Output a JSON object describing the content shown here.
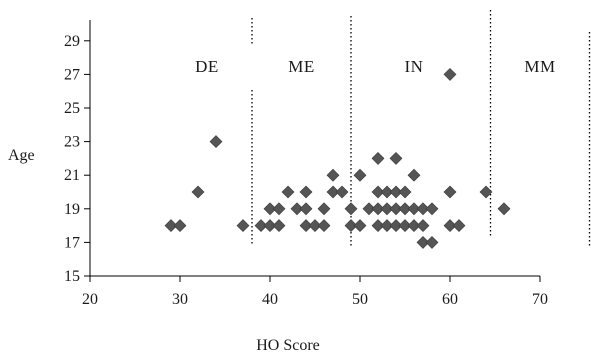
{
  "chart_data": {
    "type": "scatter",
    "title": "",
    "xlabel": "HO Score",
    "ylabel": "Age",
    "xlim": [
      20,
      70
    ],
    "ylim": [
      15,
      30
    ],
    "x_ticks": [
      20,
      30,
      40,
      50,
      60,
      70
    ],
    "y_ticks": [
      15,
      17,
      19,
      21,
      23,
      25,
      27,
      29
    ],
    "grid": false,
    "legend": "none",
    "marker": "diamond",
    "marker_color": "#555555",
    "regions": [
      {
        "label": "DE",
        "x_center": 33
      },
      {
        "label": "ME",
        "x_center": 43.5
      },
      {
        "label": "IN",
        "x_center": 56
      },
      {
        "label": "MM",
        "x_center": 70
      }
    ],
    "dividers": [
      38,
      49,
      64.5,
      75.5
    ],
    "points": [
      {
        "x": 29,
        "y": 18
      },
      {
        "x": 30,
        "y": 18
      },
      {
        "x": 32,
        "y": 20
      },
      {
        "x": 34,
        "y": 23
      },
      {
        "x": 37,
        "y": 18
      },
      {
        "x": 39,
        "y": 18
      },
      {
        "x": 40,
        "y": 18
      },
      {
        "x": 41,
        "y": 18
      },
      {
        "x": 40,
        "y": 19
      },
      {
        "x": 41,
        "y": 19
      },
      {
        "x": 42,
        "y": 20
      },
      {
        "x": 43,
        "y": 19
      },
      {
        "x": 44,
        "y": 19
      },
      {
        "x": 44,
        "y": 20
      },
      {
        "x": 44,
        "y": 18
      },
      {
        "x": 45,
        "y": 18
      },
      {
        "x": 46,
        "y": 18
      },
      {
        "x": 46,
        "y": 19
      },
      {
        "x": 47,
        "y": 20
      },
      {
        "x": 47,
        "y": 21
      },
      {
        "x": 48,
        "y": 20
      },
      {
        "x": 49,
        "y": 19
      },
      {
        "x": 49,
        "y": 18
      },
      {
        "x": 50,
        "y": 18
      },
      {
        "x": 50,
        "y": 21
      },
      {
        "x": 51,
        "y": 19
      },
      {
        "x": 52,
        "y": 19
      },
      {
        "x": 52,
        "y": 18
      },
      {
        "x": 52,
        "y": 20
      },
      {
        "x": 52,
        "y": 22
      },
      {
        "x": 53,
        "y": 18
      },
      {
        "x": 53,
        "y": 19
      },
      {
        "x": 53,
        "y": 20
      },
      {
        "x": 54,
        "y": 18
      },
      {
        "x": 54,
        "y": 19
      },
      {
        "x": 54,
        "y": 20
      },
      {
        "x": 54,
        "y": 22
      },
      {
        "x": 55,
        "y": 18
      },
      {
        "x": 55,
        "y": 19
      },
      {
        "x": 55,
        "y": 20
      },
      {
        "x": 56,
        "y": 18
      },
      {
        "x": 56,
        "y": 19
      },
      {
        "x": 56,
        "y": 21
      },
      {
        "x": 57,
        "y": 18
      },
      {
        "x": 57,
        "y": 17
      },
      {
        "x": 57,
        "y": 19
      },
      {
        "x": 58,
        "y": 17
      },
      {
        "x": 58,
        "y": 19
      },
      {
        "x": 60,
        "y": 18
      },
      {
        "x": 60,
        "y": 20
      },
      {
        "x": 60,
        "y": 27
      },
      {
        "x": 61,
        "y": 18
      },
      {
        "x": 64,
        "y": 20
      },
      {
        "x": 66,
        "y": 19
      }
    ]
  }
}
